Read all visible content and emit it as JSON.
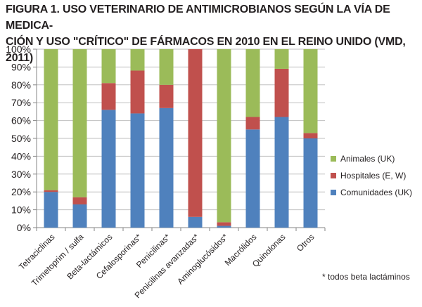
{
  "title": "FIGURA 1. USO VETERINARIO DE ANTIMICROBIANOS SEGÚN LA VÍA DE MEDICA-CIÓN Y USO \"CRÍTICO\" DE FÁRMACOS EN 2010 EN EL REINO UNIDO (VMD, 2011)",
  "title_lines": [
    "FIGURA 1. USO VETERINARIO DE ANTIMICROBIANOS SEGÚN LA VÍA DE MEDICA-",
    "CIÓN Y USO \"CRÍTICO\" DE FÁRMACOS EN 2010 EN EL REINO UNIDO (VMD, 2011)"
  ],
  "footnote": "* todos beta lactáminos",
  "colors": {
    "animales": "#9bbb59",
    "hospitales": "#c0504d",
    "comunidades": "#4f81bd",
    "grid": "#bfbfbf",
    "axis": "#868686",
    "text": "#231f20"
  },
  "chart_data": {
    "type": "bar",
    "stacked": true,
    "percent": true,
    "title": "",
    "xlabel": "",
    "ylabel": "",
    "ylim": [
      0,
      100
    ],
    "yticks": [
      "0%",
      "10%",
      "20%",
      "30%",
      "40%",
      "50%",
      "60%",
      "70%",
      "80%",
      "90%",
      "100%"
    ],
    "grid": true,
    "legend_position": "right",
    "categories": [
      "Tetraciclinas",
      "Trimetoprim / sulfa",
      "Beta-lactámicos",
      "Cefalosporinas*",
      "Penicilinas*",
      "Penicilinas avanzadas*",
      "Aminoglucósidos*",
      "Macrólidos",
      "Quinolonas",
      "Otros"
    ],
    "series": [
      {
        "name": "Comunidades (UK)",
        "color": "#4f81bd",
        "values": [
          20,
          13,
          66,
          64,
          67,
          6,
          1,
          55,
          62,
          50
        ]
      },
      {
        "name": "Hospitales (E, W)",
        "color": "#c0504d",
        "values": [
          1,
          4,
          15,
          24,
          13,
          94,
          2,
          7,
          27,
          3
        ]
      },
      {
        "name": "Animales (UK)",
        "color": "#9bbb59",
        "values": [
          79,
          83,
          19,
          12,
          20,
          0,
          97,
          38,
          11,
          47
        ]
      }
    ],
    "legend_order": [
      "Animales (UK)",
      "Hospitales (E, W)",
      "Comunidades (UK)"
    ]
  }
}
